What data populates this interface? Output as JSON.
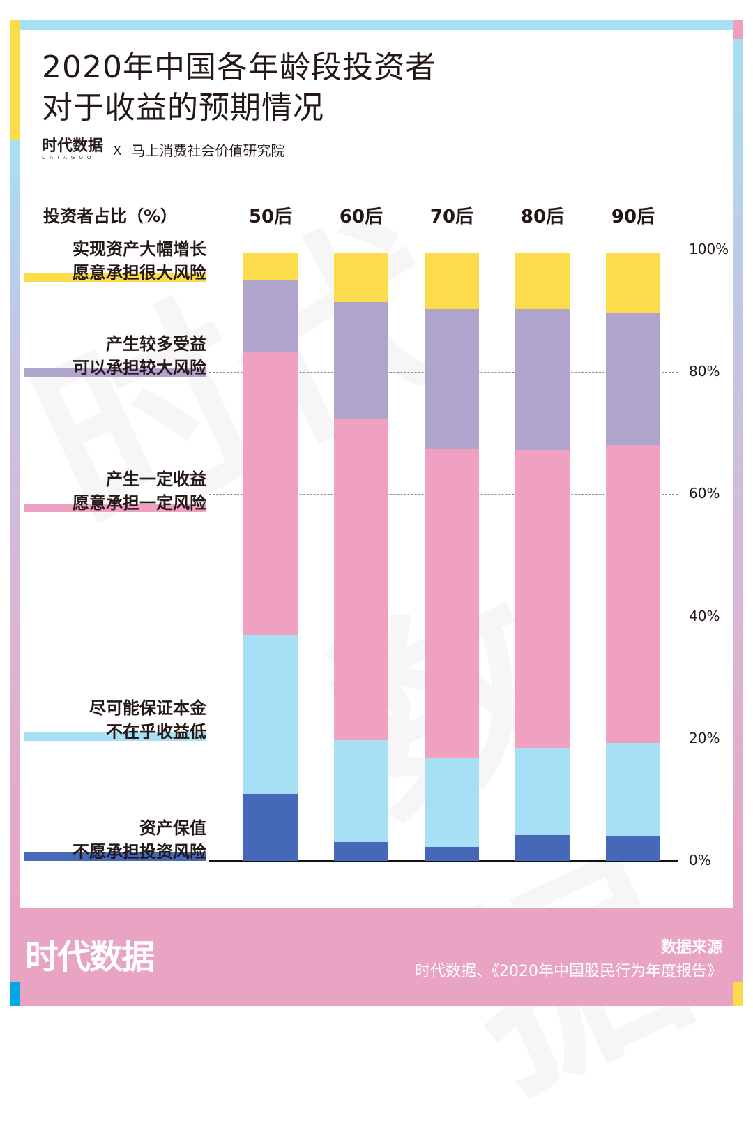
{
  "header": {
    "title_line1": "2020年中国各年龄段投资者",
    "title_line2": "对于收益的预期情况",
    "brand": "时代数据",
    "brand_sub": "DATAGOO",
    "x": "X",
    "partner": "马上消费社会价值研究院"
  },
  "chart_data": {
    "type": "bar",
    "stacked": true,
    "title": "2020年中国各年龄段投资者对于收益的预期情况",
    "ylabel": "投资者占比（%）",
    "xlabel": "",
    "ylim": [
      0,
      100
    ],
    "yticks": [
      "0%",
      "20%",
      "40%",
      "60%",
      "80%",
      "100%"
    ],
    "categories": [
      "50后",
      "60后",
      "70后",
      "80后",
      "90后"
    ],
    "series": [
      {
        "name": "资产保值 不愿承担投资风险",
        "color": "#4569b8",
        "values": [
          11.0,
          3.1,
          2.3,
          4.2,
          4.0
        ]
      },
      {
        "name": "尽可能保证本金 不在乎收益低",
        "color": "#a7e0f5",
        "values": [
          26.1,
          16.7,
          14.6,
          14.4,
          15.4
        ]
      },
      {
        "name": "产生一定收益 愿意承担一定风险",
        "color": "#f0a1c2",
        "values": [
          46.4,
          52.9,
          50.8,
          49.0,
          49.0
        ]
      },
      {
        "name": "产生较多受益 可以承担较大风险",
        "color": "#afa5cc",
        "values": [
          11.9,
          19.2,
          23.1,
          23.1,
          21.8
        ]
      },
      {
        "name": "实现资产大幅增长 愿意承担很大风险",
        "color": "#fddc4b",
        "values": [
          4.5,
          8.1,
          9.3,
          9.3,
          9.9
        ]
      }
    ],
    "grid": true,
    "legend_position": "left"
  },
  "axis": {
    "ylabel": "投资者占比（%）",
    "ticks": [
      "100%",
      "80%",
      "60%",
      "40%",
      "20%",
      "0%"
    ]
  },
  "legend": [
    {
      "line1": "实现资产大幅增长",
      "line2": "愿意承担很大风险",
      "color": "#fddc4b"
    },
    {
      "line1": "产生较多受益",
      "line2": "可以承担较大风险",
      "color": "#afa5cc"
    },
    {
      "line1": "产生一定收益",
      "line2": "愿意承担一定风险",
      "color": "#f0a1c2"
    },
    {
      "line1": "尽可能保证本金",
      "line2": "不在乎收益低",
      "color": "#a7e0f5"
    },
    {
      "line1": "资产保值",
      "line2": "不愿承担投资风险",
      "color": "#4569b8"
    }
  ],
  "footer": {
    "logo": "时代数据",
    "source_title": "数据来源",
    "source_text": "时代数据、《2020年中国股民行为年度报告》"
  }
}
